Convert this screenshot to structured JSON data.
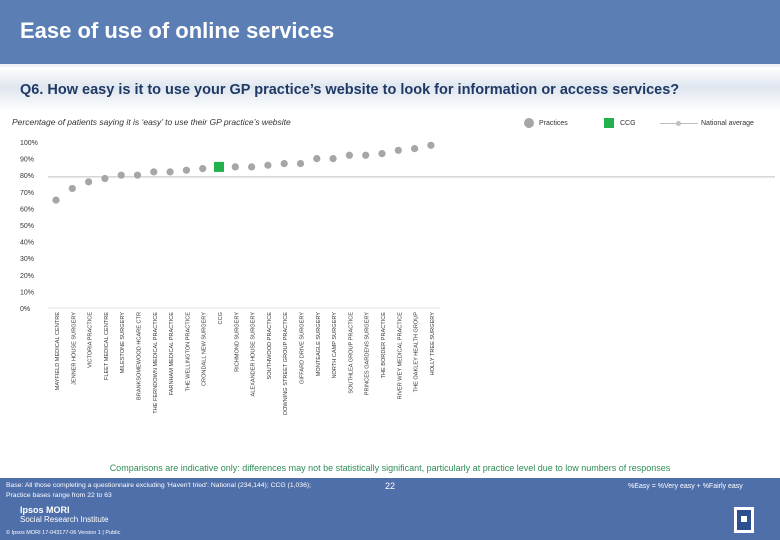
{
  "header": {
    "title": "Ease of use of online services"
  },
  "question": "Q6. How easy is it to use your GP practice’s website to look for information or access services?",
  "subtitle": "Percentage of patients saying it is ‘easy’ to use their GP practice’s website",
  "legend": {
    "practices": "Practices",
    "ccg": "CCG",
    "national": "National average"
  },
  "colors": {
    "practice": "#a6a6a6",
    "ccg": "#22b14c",
    "national": "#bfbfbf",
    "header": "#5b7fb5",
    "footer": "#4f6faa",
    "note": "#2e8b57"
  },
  "chart_data": {
    "type": "scatter",
    "title": "Percentage of patients saying it is ‘easy’ to use their GP practice’s website",
    "ylim": [
      0,
      100
    ],
    "yticks": [
      "0%",
      "10%",
      "20%",
      "30%",
      "40%",
      "50%",
      "60%",
      "70%",
      "80%",
      "90%",
      "100%"
    ],
    "national_average": 79,
    "categories": [
      "MAYFIELD MEDICAL CENTRE",
      "JENNER HOUSE SURGERY",
      "VICTORIA PRACTICE",
      "FLEET MEDICAL CENTRE",
      "MILESTONE SURGERY",
      "BRANKSOMEWOOD HCARE CTR",
      "THE FERNDOWN MEDICAL PRACTICE",
      "FARNHAM MEDICAL PRACTICE",
      "THE WELLINGTON PRACTICE",
      "CRONDALL NEW SURGERY",
      "CCG",
      "RICHMOND SURGERY",
      "ALEXANDER HOUSE SURGERY",
      "SOUTHWOOD PRACTICE",
      "DOWNING STREET GROUP PRACTICE",
      "GIFFARD DRIVE SURGERY",
      "MONTEAGLE SURGERY",
      "NORTH CAMP SURGERY",
      "SOUTHLEA GROUP PRACTICE",
      "PRINCES GARDENS SURGERY",
      "THE BORDER PRACTICE",
      "RIVER WEY MEDICAL PRACTICE",
      "THE OAKLEY HEALTH GROUP",
      "HOLLY TREE SURGERY"
    ],
    "values": [
      65,
      72,
      76,
      78,
      80,
      80,
      82,
      82,
      83,
      84,
      85,
      85,
      85,
      86,
      87,
      87,
      90,
      90,
      92,
      92,
      93,
      95,
      96,
      98
    ],
    "series_kind": [
      "practice",
      "practice",
      "practice",
      "practice",
      "practice",
      "practice",
      "practice",
      "practice",
      "practice",
      "practice",
      "ccg",
      "practice",
      "practice",
      "practice",
      "practice",
      "practice",
      "practice",
      "practice",
      "practice",
      "practice",
      "practice",
      "practice",
      "practice",
      "practice"
    ]
  },
  "comparison_note": "Comparisons are indicative only: differences may not be statistically significant, particularly at practice level due to low numbers of responses",
  "footer": {
    "base_line1": "Base: All those completing a questionnaire excluding 'Haven't tried': National (234,144); CCG (1,036);",
    "base_line2": "Practice bases range from 22 to 63",
    "easy_definition": "%Easy = %Very easy + %Fairly easy",
    "page_number": "22",
    "logo_line1": "Ipsos MORI",
    "logo_line2": "Social Research Institute",
    "copyright": "© Ipsos MORI      17-043177-06 Version 1 | Public"
  }
}
